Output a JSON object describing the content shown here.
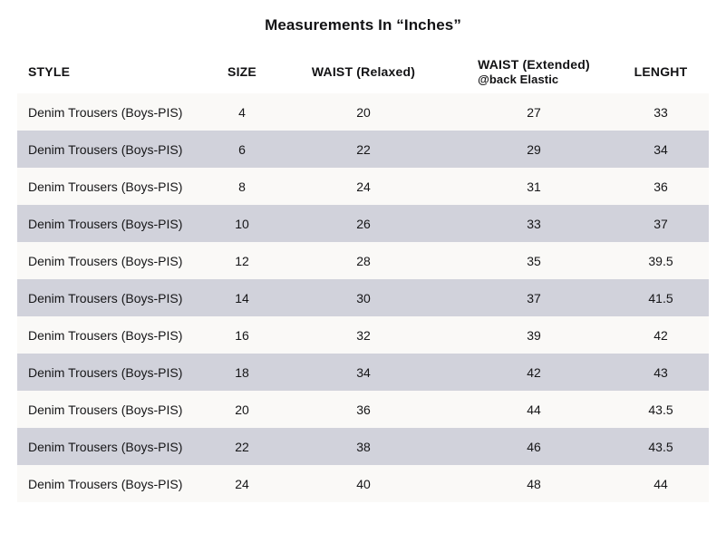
{
  "colors": {
    "page_bg": "#ffffff",
    "row_light": "#faf9f7",
    "row_shaded": "#d1d2db",
    "text": "#161618",
    "heading": "#121214"
  },
  "chart_data": {
    "type": "table",
    "title": "Measurements In “Inches”",
    "columns": [
      {
        "key": "style",
        "label": "STYLE",
        "sub": ""
      },
      {
        "key": "size",
        "label": "SIZE",
        "sub": ""
      },
      {
        "key": "waist_relaxed",
        "label": "WAIST (Relaxed)",
        "sub": ""
      },
      {
        "key": "waist_extended",
        "label": "WAIST (Extended)",
        "sub": "@back Elastic"
      },
      {
        "key": "length",
        "label": "LENGHT",
        "sub": ""
      }
    ],
    "rows": [
      {
        "style": "Denim Trousers (Boys-PIS)",
        "size": "4",
        "waist_relaxed": "20",
        "waist_extended": "27",
        "length": "33"
      },
      {
        "style": "Denim Trousers (Boys-PIS)",
        "size": "6",
        "waist_relaxed": "22",
        "waist_extended": "29",
        "length": "34"
      },
      {
        "style": "Denim Trousers (Boys-PIS)",
        "size": "8",
        "waist_relaxed": "24",
        "waist_extended": "31",
        "length": "36"
      },
      {
        "style": "Denim Trousers (Boys-PIS)",
        "size": "10",
        "waist_relaxed": "26",
        "waist_extended": "33",
        "length": "37"
      },
      {
        "style": "Denim Trousers (Boys-PIS)",
        "size": "12",
        "waist_relaxed": "28",
        "waist_extended": "35",
        "length": "39.5"
      },
      {
        "style": "Denim Trousers (Boys-PIS)",
        "size": "14",
        "waist_relaxed": "30",
        "waist_extended": "37",
        "length": "41.5"
      },
      {
        "style": "Denim Trousers (Boys-PIS)",
        "size": "16",
        "waist_relaxed": "32",
        "waist_extended": "39",
        "length": "42"
      },
      {
        "style": "Denim Trousers (Boys-PIS)",
        "size": "18",
        "waist_relaxed": "34",
        "waist_extended": "42",
        "length": "43"
      },
      {
        "style": "Denim Trousers (Boys-PIS)",
        "size": "20",
        "waist_relaxed": "36",
        "waist_extended": "44",
        "length": "43.5"
      },
      {
        "style": "Denim Trousers (Boys-PIS)",
        "size": "22",
        "waist_relaxed": "38",
        "waist_extended": "46",
        "length": "43.5"
      },
      {
        "style": "Denim Trousers (Boys-PIS)",
        "size": "24",
        "waist_relaxed": "40",
        "waist_extended": "48",
        "length": "44"
      }
    ]
  }
}
